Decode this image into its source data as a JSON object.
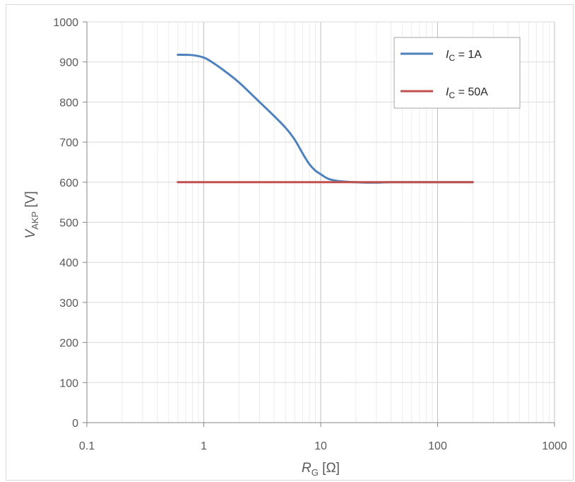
{
  "chart_data": {
    "type": "line",
    "x_scale": "log",
    "xlim": [
      0.1,
      1000
    ],
    "ylim": [
      0,
      1000
    ],
    "grid": true,
    "legend_position": "top-right",
    "x_ticks": [
      "0.1",
      "1",
      "10",
      "100",
      "1000"
    ],
    "y_ticks": [
      "0",
      "100",
      "200",
      "300",
      "400",
      "500",
      "600",
      "700",
      "800",
      "900",
      "1000"
    ],
    "xlabel": {
      "main": "R",
      "sub": "G",
      "unit": " [Ω]"
    },
    "ylabel": {
      "main": "V",
      "sub": "AKP",
      "unit": " [V]"
    },
    "series": [
      {
        "legend_main": "I",
        "legend_sub": "C",
        "legend_rest": " = 1A",
        "color": "#4f81bd",
        "x": [
          0.6,
          0.8,
          1.0,
          1.2,
          1.5,
          2,
          3,
          4,
          5,
          6,
          7,
          8,
          9,
          10,
          11,
          12,
          14,
          17,
          20,
          25,
          30,
          40,
          60,
          100,
          200
        ],
        "y": [
          918,
          917,
          911,
          898,
          878,
          849,
          800,
          765,
          736,
          706,
          672,
          645,
          629,
          620,
          612,
          607,
          603,
          601,
          600,
          599,
          599,
          600,
          600,
          600,
          600
        ]
      },
      {
        "legend_main": "I",
        "legend_sub": "C",
        "legend_rest": " = 50A",
        "color": "#c0504d",
        "x": [
          0.6,
          1,
          10,
          100,
          200
        ],
        "y": [
          600,
          600,
          600,
          600,
          600
        ]
      }
    ]
  }
}
